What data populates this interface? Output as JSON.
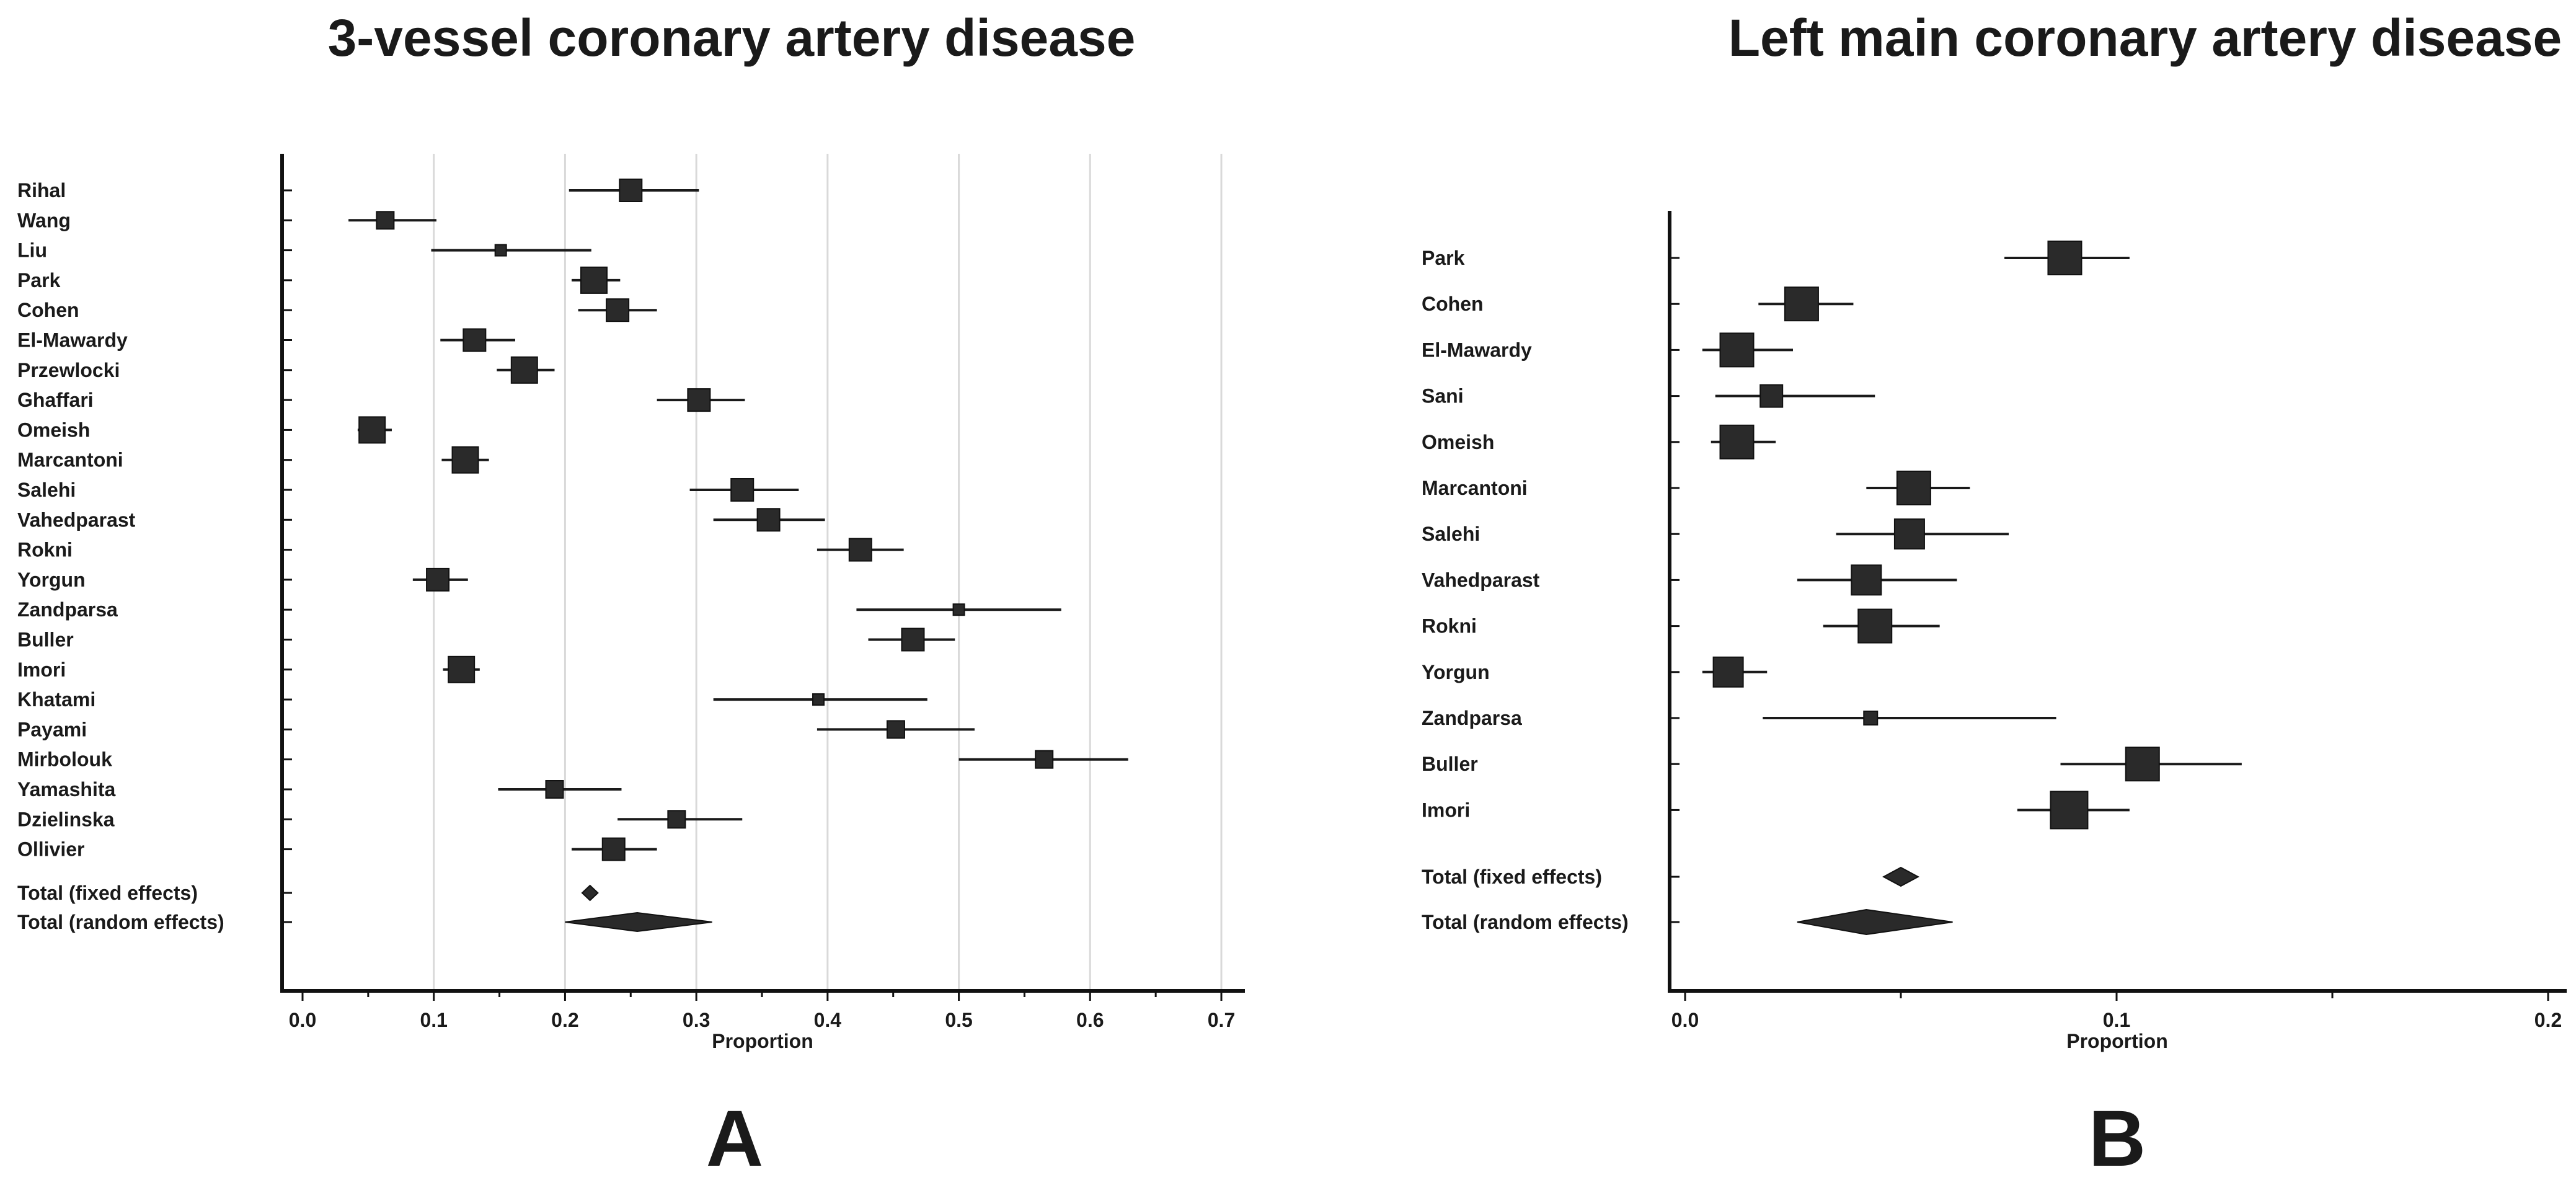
{
  "chart_data": [
    {
      "type": "forest",
      "panel": "A",
      "title": "3-vessel coronary artery disease",
      "xlabel": "Proportion",
      "xlim": [
        0,
        0.7
      ],
      "ticks": [
        "0.0",
        "0.1",
        "0.2",
        "0.3",
        "0.4",
        "0.5",
        "0.6",
        "0.7"
      ],
      "tick_values": [
        0.0,
        0.1,
        0.2,
        0.3,
        0.4,
        0.5,
        0.6,
        0.7
      ],
      "grid": true,
      "studies": [
        {
          "label": "Rihal",
          "estimate": 0.25,
          "lower": 0.203,
          "upper": 0.302,
          "weight": 3
        },
        {
          "label": "Wang",
          "estimate": 0.063,
          "lower": 0.035,
          "upper": 0.102,
          "weight": 2
        },
        {
          "label": "Liu",
          "estimate": 0.151,
          "lower": 0.098,
          "upper": 0.22,
          "weight": 1
        },
        {
          "label": "Park",
          "estimate": 0.222,
          "lower": 0.205,
          "upper": 0.242,
          "weight": 4
        },
        {
          "label": "Cohen",
          "estimate": 0.24,
          "lower": 0.21,
          "upper": 0.27,
          "weight": 3
        },
        {
          "label": "El-Mawardy",
          "estimate": 0.131,
          "lower": 0.105,
          "upper": 0.162,
          "weight": 3
        },
        {
          "label": "Przewlocki",
          "estimate": 0.169,
          "lower": 0.148,
          "upper": 0.192,
          "weight": 4
        },
        {
          "label": "Ghaffari",
          "estimate": 0.302,
          "lower": 0.27,
          "upper": 0.337,
          "weight": 3
        },
        {
          "label": "Omeish",
          "estimate": 0.053,
          "lower": 0.042,
          "upper": 0.068,
          "weight": 4
        },
        {
          "label": "Marcantoni",
          "estimate": 0.124,
          "lower": 0.106,
          "upper": 0.142,
          "weight": 4
        },
        {
          "label": "Salehi",
          "estimate": 0.335,
          "lower": 0.295,
          "upper": 0.378,
          "weight": 3
        },
        {
          "label": "Vahedparast",
          "estimate": 0.355,
          "lower": 0.313,
          "upper": 0.398,
          "weight": 3
        },
        {
          "label": "Rokni",
          "estimate": 0.425,
          "lower": 0.392,
          "upper": 0.458,
          "weight": 3
        },
        {
          "label": "Yorgun",
          "estimate": 0.103,
          "lower": 0.084,
          "upper": 0.126,
          "weight": 3
        },
        {
          "label": "Zandparsa",
          "estimate": 0.5,
          "lower": 0.422,
          "upper": 0.578,
          "weight": 1
        },
        {
          "label": "Buller",
          "estimate": 0.465,
          "lower": 0.431,
          "upper": 0.497,
          "weight": 3
        },
        {
          "label": "Imori",
          "estimate": 0.121,
          "lower": 0.107,
          "upper": 0.135,
          "weight": 4
        },
        {
          "label": "Khatami",
          "estimate": 0.393,
          "lower": 0.313,
          "upper": 0.476,
          "weight": 1
        },
        {
          "label": "Payami",
          "estimate": 0.452,
          "lower": 0.392,
          "upper": 0.512,
          "weight": 2
        },
        {
          "label": "Mirbolouk",
          "estimate": 0.565,
          "lower": 0.5,
          "upper": 0.629,
          "weight": 2
        },
        {
          "label": "Yamashita",
          "estimate": 0.192,
          "lower": 0.149,
          "upper": 0.243,
          "weight": 2
        },
        {
          "label": "Dzielinska",
          "estimate": 0.285,
          "lower": 0.24,
          "upper": 0.335,
          "weight": 2
        },
        {
          "label": "Ollivier",
          "estimate": 0.237,
          "lower": 0.205,
          "upper": 0.27,
          "weight": 3
        }
      ],
      "totals": [
        {
          "label": "Total (fixed effects)",
          "estimate": 0.219,
          "lower": 0.213,
          "upper": 0.225
        },
        {
          "label": "Total (random effects)",
          "estimate": 0.255,
          "lower": 0.2,
          "upper": 0.312
        }
      ]
    },
    {
      "type": "forest",
      "panel": "B",
      "title": "Left main coronary artery disease",
      "xlabel": "Proportion",
      "xlim": [
        0,
        0.2
      ],
      "ticks": [
        "0.0",
        "0.1",
        "0.2"
      ],
      "tick_values": [
        0.0,
        0.1,
        0.2
      ],
      "minor_ticks": [
        0.05,
        0.15
      ],
      "grid": false,
      "studies": [
        {
          "label": "Park",
          "estimate": 0.088,
          "lower": 0.074,
          "upper": 0.103,
          "weight": 4
        },
        {
          "label": "Cohen",
          "estimate": 0.027,
          "lower": 0.017,
          "upper": 0.039,
          "weight": 4
        },
        {
          "label": "El-Mawardy",
          "estimate": 0.012,
          "lower": 0.004,
          "upper": 0.025,
          "weight": 4
        },
        {
          "label": "Sani",
          "estimate": 0.02,
          "lower": 0.007,
          "upper": 0.044,
          "weight": 2
        },
        {
          "label": "Omeish",
          "estimate": 0.012,
          "lower": 0.006,
          "upper": 0.021,
          "weight": 4
        },
        {
          "label": "Marcantoni",
          "estimate": 0.053,
          "lower": 0.042,
          "upper": 0.066,
          "weight": 4
        },
        {
          "label": "Salehi",
          "estimate": 0.052,
          "lower": 0.035,
          "upper": 0.075,
          "weight": 3
        },
        {
          "label": "Vahedparast",
          "estimate": 0.042,
          "lower": 0.026,
          "upper": 0.063,
          "weight": 3
        },
        {
          "label": "Rokni",
          "estimate": 0.044,
          "lower": 0.032,
          "upper": 0.059,
          "weight": 4
        },
        {
          "label": "Yorgun",
          "estimate": 0.01,
          "lower": 0.004,
          "upper": 0.019,
          "weight": 3
        },
        {
          "label": "Zandparsa",
          "estimate": 0.043,
          "lower": 0.018,
          "upper": 0.086,
          "weight": 1
        },
        {
          "label": "Buller",
          "estimate": 0.106,
          "lower": 0.087,
          "upper": 0.129,
          "weight": 4
        },
        {
          "label": "Imori",
          "estimate": 0.089,
          "lower": 0.077,
          "upper": 0.103,
          "weight": 5
        }
      ],
      "totals": [
        {
          "label": "Total (fixed effects)",
          "estimate": 0.05,
          "lower": 0.046,
          "upper": 0.054
        },
        {
          "label": "Total (random effects)",
          "estimate": 0.042,
          "lower": 0.026,
          "upper": 0.062
        }
      ]
    }
  ]
}
